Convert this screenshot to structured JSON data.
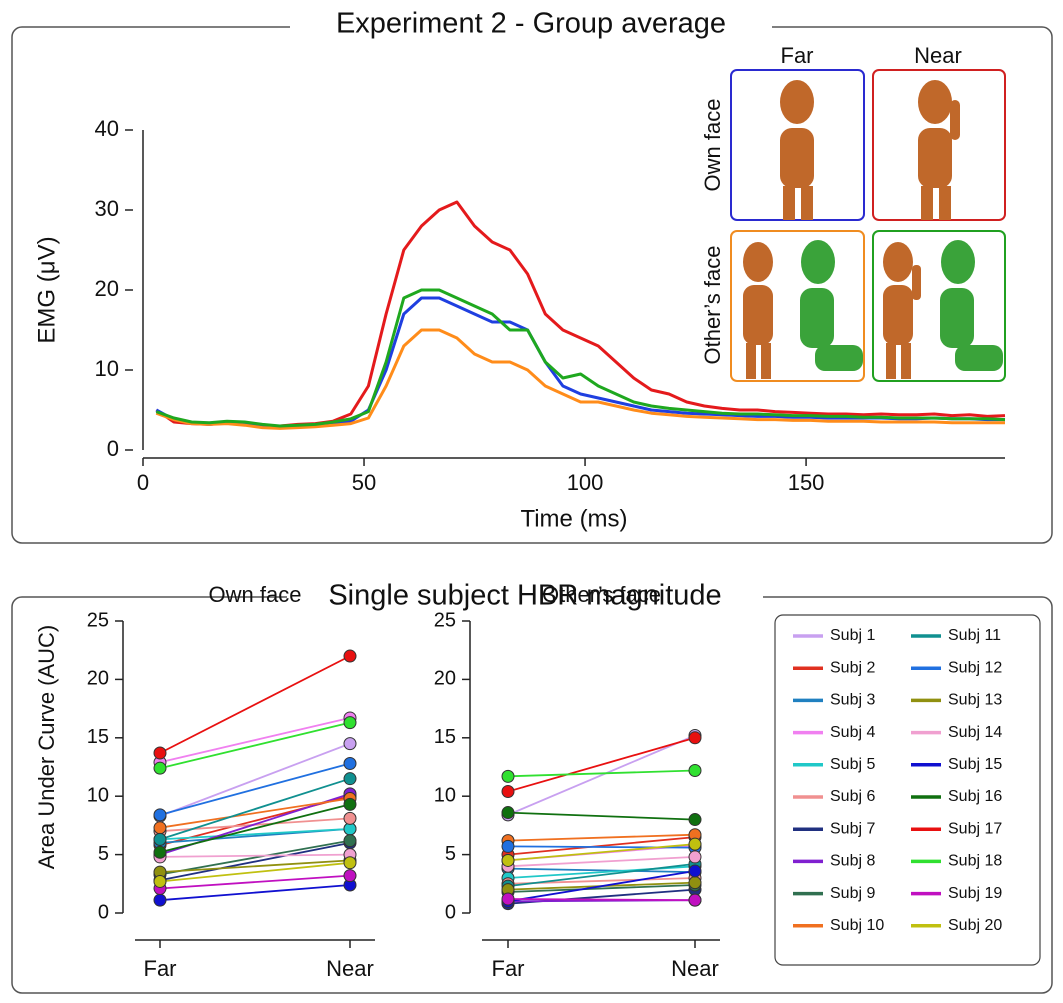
{
  "section_title": "Single subject HBR magnitude",
  "inset": {
    "columns": [
      "Far",
      "Near"
    ],
    "rows": [
      "Own face",
      "Other’s face"
    ]
  },
  "chart_data": [
    {
      "type": "line",
      "title": "Experiment 2 - Group average",
      "xlabel": "Time (ms)",
      "ylabel": "EMG (μV)",
      "xlim": [
        0,
        195
      ],
      "xticks": [
        0,
        50,
        100,
        150
      ],
      "ylim": [
        0,
        40
      ],
      "yticks": [
        0,
        10,
        20,
        30,
        40
      ],
      "x": [
        3,
        7,
        11,
        15,
        19,
        23,
        27,
        31,
        35,
        39,
        43,
        47,
        51,
        55,
        59,
        63,
        67,
        71,
        75,
        79,
        83,
        87,
        91,
        95,
        99,
        103,
        107,
        111,
        115,
        119,
        123,
        127,
        131,
        135,
        139,
        143,
        147,
        151,
        155,
        159,
        163,
        167,
        171,
        175,
        179,
        183,
        187,
        191,
        195
      ],
      "series": [
        {
          "color": "#e41a1c",
          "values": [
            5,
            3.5,
            3.3,
            3.2,
            3.4,
            3.2,
            3.0,
            3.0,
            3.2,
            3.3,
            3.6,
            4.5,
            8,
            17,
            25,
            28,
            30,
            31,
            28,
            26,
            25,
            22,
            17,
            15,
            14,
            13,
            11,
            9,
            7.5,
            7,
            6,
            5.5,
            5.2,
            5,
            5,
            4.8,
            4.7,
            4.6,
            4.5,
            4.5,
            4.4,
            4.5,
            4.4,
            4.4,
            4.5,
            4.3,
            4.4,
            4.2,
            4.3
          ]
        },
        {
          "color": "#1f3fe0",
          "values": [
            5,
            3.8,
            3.4,
            3.2,
            3.4,
            3.2,
            3.0,
            2.9,
            3.0,
            3.1,
            3.3,
            3.6,
            5,
            10,
            17,
            19,
            19,
            18,
            17,
            16,
            16,
            15,
            11,
            8,
            7,
            6.5,
            6,
            5.5,
            5,
            4.8,
            4.6,
            4.5,
            4.4,
            4.3,
            4.2,
            4.2,
            4.1,
            4.1,
            4.0,
            4.0,
            4.0,
            4.0,
            3.9,
            3.9,
            4.0,
            3.9,
            3.9,
            3.8,
            3.8
          ]
        },
        {
          "color": "#ff8c1a",
          "values": [
            4.6,
            3.8,
            3.3,
            3.2,
            3.3,
            3.1,
            2.8,
            2.7,
            2.8,
            2.9,
            3.1,
            3.3,
            4.0,
            8,
            13,
            15,
            15,
            14,
            12,
            11,
            11,
            10,
            8,
            7,
            6,
            6,
            5.5,
            5,
            4.6,
            4.4,
            4.2,
            4.1,
            4.0,
            3.9,
            3.8,
            3.8,
            3.7,
            3.7,
            3.6,
            3.6,
            3.6,
            3.5,
            3.5,
            3.5,
            3.5,
            3.4,
            3.4,
            3.4,
            3.4
          ]
        },
        {
          "color": "#1fa81f",
          "values": [
            4.8,
            4.0,
            3.5,
            3.4,
            3.6,
            3.5,
            3.2,
            3.0,
            3.1,
            3.2,
            3.5,
            3.9,
            4.8,
            11,
            19,
            20,
            20,
            19,
            18,
            17,
            15,
            15,
            11,
            9,
            9.5,
            8,
            7,
            6,
            5.5,
            5.2,
            5,
            4.8,
            4.6,
            4.5,
            4.5,
            4.4,
            4.3,
            4.3,
            4.2,
            4.2,
            4.1,
            4.1,
            4.0,
            4.0,
            4.0,
            3.9,
            3.9,
            3.9,
            3.8
          ]
        }
      ]
    },
    {
      "type": "slope",
      "title": "Own face",
      "ylabel": "Area Under Curve (AUC)",
      "categories": [
        "Far",
        "Near"
      ],
      "ylim": [
        0,
        25
      ],
      "yticks": [
        0,
        5,
        10,
        15,
        20,
        25
      ],
      "series": [
        {
          "name": "Subj 1",
          "color": "#c8a0f0",
          "values": [
            8.3,
            14.5
          ]
        },
        {
          "name": "Subj 2",
          "color": "#e03020",
          "values": [
            5.8,
            10.0
          ]
        },
        {
          "name": "Subj 3",
          "color": "#2080c0",
          "values": [
            6.0,
            7.2
          ]
        },
        {
          "name": "Subj 4",
          "color": "#f080f0",
          "values": [
            12.9,
            16.7
          ]
        },
        {
          "name": "Subj 5",
          "color": "#20c8c8",
          "values": [
            6.3,
            7.2
          ]
        },
        {
          "name": "Subj 6",
          "color": "#f09090",
          "values": [
            7.0,
            8.1
          ]
        },
        {
          "name": "Subj 7",
          "color": "#203080",
          "values": [
            2.8,
            6.0
          ]
        },
        {
          "name": "Subj 8",
          "color": "#8020d0",
          "values": [
            5.0,
            10.2
          ]
        },
        {
          "name": "Subj 9",
          "color": "#307050",
          "values": [
            3.3,
            6.2
          ]
        },
        {
          "name": "Subj 10",
          "color": "#f07020",
          "values": [
            7.3,
            9.8
          ]
        },
        {
          "name": "Subj 11",
          "color": "#109090",
          "values": [
            6.3,
            11.5
          ]
        },
        {
          "name": "Subj 12",
          "color": "#2070e0",
          "values": [
            8.4,
            12.8
          ]
        },
        {
          "name": "Subj 13",
          "color": "#909010",
          "values": [
            3.5,
            4.5
          ]
        },
        {
          "name": "Subj 14",
          "color": "#f0a0d0",
          "values": [
            4.8,
            5.0
          ]
        },
        {
          "name": "Subj 15",
          "color": "#1010d0",
          "values": [
            1.1,
            2.4
          ]
        },
        {
          "name": "Subj 16",
          "color": "#107010",
          "values": [
            5.2,
            9.3
          ]
        },
        {
          "name": "Subj 17",
          "color": "#e81010",
          "values": [
            13.7,
            22.0
          ]
        },
        {
          "name": "Subj 18",
          "color": "#30e030",
          "values": [
            12.4,
            16.3
          ]
        },
        {
          "name": "Subj 19",
          "color": "#c010c0",
          "values": [
            2.1,
            3.2
          ]
        },
        {
          "name": "Subj 20",
          "color": "#c0c010",
          "values": [
            2.7,
            4.3
          ]
        }
      ]
    },
    {
      "type": "slope",
      "title": "Other’s face",
      "categories": [
        "Far",
        "Near"
      ],
      "ylim": [
        0,
        25
      ],
      "yticks": [
        0,
        5,
        10,
        15,
        20,
        25
      ],
      "series": [
        {
          "color": "#c8a0f0",
          "values": [
            8.4,
            15.2
          ]
        },
        {
          "color": "#e03020",
          "values": [
            5.0,
            6.5
          ]
        },
        {
          "color": "#2080c0",
          "values": [
            3.8,
            3.5
          ]
        },
        {
          "color": "#f080f0",
          "values": [
            4.5,
            5.8
          ]
        },
        {
          "color": "#20c8c8",
          "values": [
            3.0,
            4.0
          ]
        },
        {
          "color": "#f09090",
          "values": [
            2.5,
            3.0
          ]
        },
        {
          "color": "#203080",
          "values": [
            0.8,
            2.0
          ]
        },
        {
          "color": "#8020d0",
          "values": [
            1.0,
            1.1
          ]
        },
        {
          "color": "#307050",
          "values": [
            1.8,
            2.4
          ]
        },
        {
          "color": "#f07020",
          "values": [
            6.2,
            6.7
          ]
        },
        {
          "color": "#109090",
          "values": [
            2.3,
            4.2
          ]
        },
        {
          "color": "#2070e0",
          "values": [
            5.7,
            5.6
          ]
        },
        {
          "color": "#909010",
          "values": [
            2.0,
            2.6
          ]
        },
        {
          "color": "#f0a0d0",
          "values": [
            4.0,
            4.8
          ]
        },
        {
          "color": "#1010d0",
          "values": [
            1.0,
            3.6
          ]
        },
        {
          "color": "#107010",
          "values": [
            8.6,
            8.0
          ]
        },
        {
          "color": "#e81010",
          "values": [
            10.4,
            15.0
          ]
        },
        {
          "color": "#30e030",
          "values": [
            11.7,
            12.2
          ]
        },
        {
          "color": "#c010c0",
          "values": [
            1.2,
            1.1
          ]
        },
        {
          "color": "#c0c010",
          "values": [
            4.5,
            5.9
          ]
        }
      ]
    }
  ]
}
